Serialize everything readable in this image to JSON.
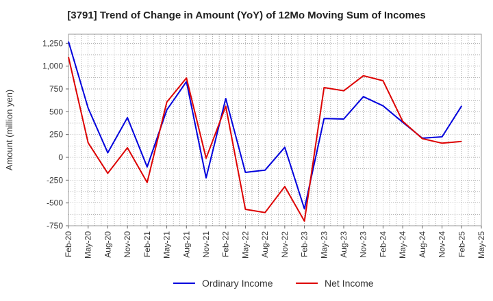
{
  "chart_data": {
    "type": "line",
    "title": "[3791]  Trend of Change in Amount (YoY) of 12Mo Moving Sum of Incomes",
    "xlabel": "",
    "ylabel": "Amount (million yen)",
    "x": [
      "Feb-20",
      "May-20",
      "Aug-20",
      "Nov-20",
      "Feb-21",
      "May-21",
      "Aug-21",
      "Nov-21",
      "Feb-22",
      "May-22",
      "Aug-22",
      "Nov-22",
      "Feb-23",
      "May-23",
      "Aug-23",
      "Nov-23",
      "Feb-24",
      "May-24",
      "Aug-24",
      "Nov-24",
      "Feb-25",
      "May-25"
    ],
    "ylim": [
      -750,
      1350
    ],
    "yticks": [
      1250,
      1000,
      750,
      500,
      250,
      0,
      -250,
      -500,
      -750
    ],
    "ytick_labels": [
      "1,250",
      "1,000",
      "750",
      "500",
      "250",
      "0",
      "-250",
      "-500",
      "-750"
    ],
    "grid": true,
    "legend_position": "bottom-center",
    "series": [
      {
        "name": "Ordinary Income",
        "color": "#0000dd",
        "values": [
          1270,
          540,
          50,
          435,
          -105,
          520,
          830,
          -225,
          645,
          -165,
          -140,
          110,
          -565,
          425,
          420,
          665,
          565,
          385,
          210,
          225,
          565,
          null
        ]
      },
      {
        "name": "Net Income",
        "color": "#dd0000",
        "values": [
          1100,
          160,
          -175,
          105,
          -275,
          605,
          870,
          -10,
          560,
          -570,
          -605,
          -320,
          -700,
          765,
          730,
          895,
          840,
          395,
          205,
          155,
          175,
          null
        ]
      }
    ]
  }
}
